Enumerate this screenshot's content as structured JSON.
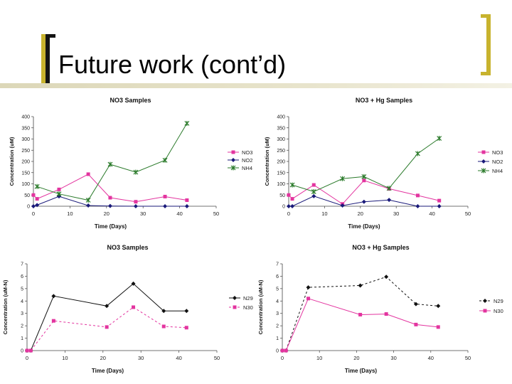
{
  "slide": {
    "title": "Future work (cont’d)"
  },
  "colors": {
    "pink": "#e3349f",
    "navy": "#1a1a7a",
    "green": "#2a7a2a",
    "black": "#111111",
    "accent": "#c8b32e"
  },
  "chart_data": [
    {
      "type": "line",
      "title": "NO3 Samples",
      "xlabel": "Time (Days)",
      "ylabel": "Concentration (uM)",
      "xlim": [
        0,
        50
      ],
      "ylim": [
        0,
        400
      ],
      "xticks": [
        "0",
        "10",
        "20",
        "30",
        "40",
        "50"
      ],
      "yticks": [
        "0",
        "50",
        "100",
        "150",
        "200",
        "250",
        "300",
        "350",
        "400"
      ],
      "series": [
        {
          "name": "NO3",
          "color": "#e3349f",
          "marker": "square",
          "dash": "",
          "x": [
            0,
            1,
            7,
            15,
            21,
            28,
            36,
            42
          ],
          "y": [
            50,
            33,
            75,
            143,
            38,
            20,
            43,
            27
          ]
        },
        {
          "name": "NO2",
          "color": "#1a1a7a",
          "marker": "diamond",
          "dash": "",
          "x": [
            0,
            1,
            7,
            15,
            21,
            28,
            36,
            42
          ],
          "y": [
            0,
            5,
            44,
            3,
            1,
            0,
            0,
            0
          ]
        },
        {
          "name": "NH4",
          "color": "#2a7a2a",
          "marker": "x",
          "dash": "",
          "x": [
            1,
            7,
            15,
            21,
            28,
            36,
            42
          ],
          "y": [
            88,
            55,
            27,
            187,
            152,
            205,
            370
          ]
        }
      ]
    },
    {
      "type": "line",
      "title": "NO3 + Hg Samples",
      "xlabel": "Time (Days)",
      "ylabel": "Concentration (uM)",
      "xlim": [
        0,
        50
      ],
      "ylim": [
        0,
        400
      ],
      "xticks": [
        "0",
        "10",
        "20",
        "30",
        "40",
        "50"
      ],
      "yticks": [
        "0",
        "50",
        "100",
        "150",
        "200",
        "250",
        "300",
        "350",
        "400"
      ],
      "series": [
        {
          "name": "NO3",
          "color": "#e3349f",
          "marker": "square",
          "dash": "",
          "x": [
            0,
            1,
            7,
            15,
            21,
            28,
            36,
            42
          ],
          "y": [
            50,
            33,
            95,
            10,
            115,
            78,
            48,
            25
          ]
        },
        {
          "name": "NO2",
          "color": "#1a1a7a",
          "marker": "diamond",
          "dash": "",
          "x": [
            0,
            1,
            7,
            15,
            21,
            28,
            36,
            42
          ],
          "y": [
            0,
            0,
            45,
            3,
            20,
            28,
            0,
            0
          ]
        },
        {
          "name": "NH4",
          "color": "#2a7a2a",
          "marker": "x",
          "dash": "",
          "x": [
            1,
            7,
            15,
            21,
            28,
            36,
            42
          ],
          "y": [
            95,
            65,
            123,
            132,
            80,
            235,
            303
          ]
        }
      ]
    },
    {
      "type": "line",
      "title": "NO3 Samples",
      "xlabel": "Time (Days)",
      "ylabel": "Concentration (uM-N)",
      "xlim": [
        0,
        50
      ],
      "ylim": [
        0,
        7
      ],
      "xticks": [
        "0",
        "10",
        "20",
        "30",
        "40",
        "50"
      ],
      "yticks": [
        "0",
        "1",
        "2",
        "3",
        "4",
        "5",
        "6",
        "7"
      ],
      "series": [
        {
          "name": "N29",
          "color": "#111111",
          "marker": "diamond",
          "dash": "",
          "x": [
            0,
            1,
            7,
            21,
            28,
            36,
            42
          ],
          "y": [
            0,
            0,
            4.4,
            3.6,
            5.4,
            3.2,
            3.2
          ]
        },
        {
          "name": "N30",
          "color": "#e3349f",
          "marker": "square",
          "dash": "3,3",
          "x": [
            0,
            1,
            7,
            21,
            28,
            36,
            42
          ],
          "y": [
            0,
            0,
            2.4,
            1.9,
            3.5,
            1.95,
            1.85
          ]
        }
      ]
    },
    {
      "type": "line",
      "title": "NO3 + Hg Samples",
      "xlabel": "Time (Days)",
      "ylabel": "Concentration (uM-N)",
      "xlim": [
        0,
        50
      ],
      "ylim": [
        0,
        7
      ],
      "xticks": [
        "0",
        "10",
        "20",
        "30",
        "40",
        "50"
      ],
      "yticks": [
        "0",
        "1",
        "2",
        "3",
        "4",
        "5",
        "6",
        "7"
      ],
      "series": [
        {
          "name": "N29",
          "color": "#111111",
          "marker": "diamond",
          "dash": "3,3",
          "x": [
            0,
            1,
            7,
            21,
            28,
            36,
            42
          ],
          "y": [
            0,
            0,
            5.1,
            5.25,
            5.95,
            3.75,
            3.6
          ]
        },
        {
          "name": "N30",
          "color": "#e3349f",
          "marker": "square",
          "dash": "",
          "x": [
            0,
            1,
            7,
            21,
            28,
            36,
            42
          ],
          "y": [
            0,
            0,
            4.2,
            2.9,
            2.95,
            2.1,
            1.9
          ]
        }
      ]
    }
  ]
}
